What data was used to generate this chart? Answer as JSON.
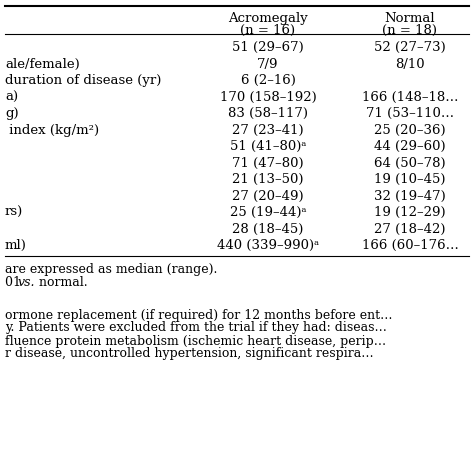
{
  "header_col1_line1": "Acromegaly",
  "header_col1_line2": "(n = 16)",
  "header_col2_line1": "Normal",
  "header_col2_line2": "(n = 18)",
  "rows": [
    [
      "",
      "51 (29–67)",
      "52 (27–73)"
    ],
    [
      "ale/female)",
      "7/9",
      "8/10"
    ],
    [
      "duration of disease (yr)",
      "6 (2–16)",
      ""
    ],
    [
      "a)",
      "170 (158–192)",
      "166 (148–18…"
    ],
    [
      "g)",
      "83 (58–117)",
      "71 (53–110…"
    ],
    [
      " index (kg/m²)",
      "27 (23–41)",
      "25 (20–36)"
    ],
    [
      "",
      "51 (41–80)ᵃ",
      "44 (29–60)"
    ],
    [
      "",
      "71 (47–80)",
      "64 (50–78)"
    ],
    [
      "",
      "21 (13–50)",
      "19 (10–45)"
    ],
    [
      "",
      "27 (20–49)",
      "32 (19–47)"
    ],
    [
      "rs)",
      "25 (19–44)ᵃ",
      "19 (12–29)"
    ],
    [
      "",
      "28 (18–45)",
      "27 (18–42)"
    ],
    [
      "ml)",
      "440 (339–990)ᵃ",
      "166 (60–176…"
    ]
  ],
  "footnote1": "are expressed as median (range).",
  "footnote2_prefix": "01 ",
  "footnote2_italic": "vs.",
  "footnote2_suffix": " normal.",
  "bottom_texts": [
    "ormone replacement (if required) for 12 months before ent…",
    "y. Patients were excluded from the trial if they had: diseas…",
    "fluence protein metabolism (ischemic heart disease, perip…",
    "r disease, uncontrolled hypertension, significant respira…"
  ],
  "bg_color": "#ffffff",
  "text_color": "#000000",
  "line_color": "#000000"
}
